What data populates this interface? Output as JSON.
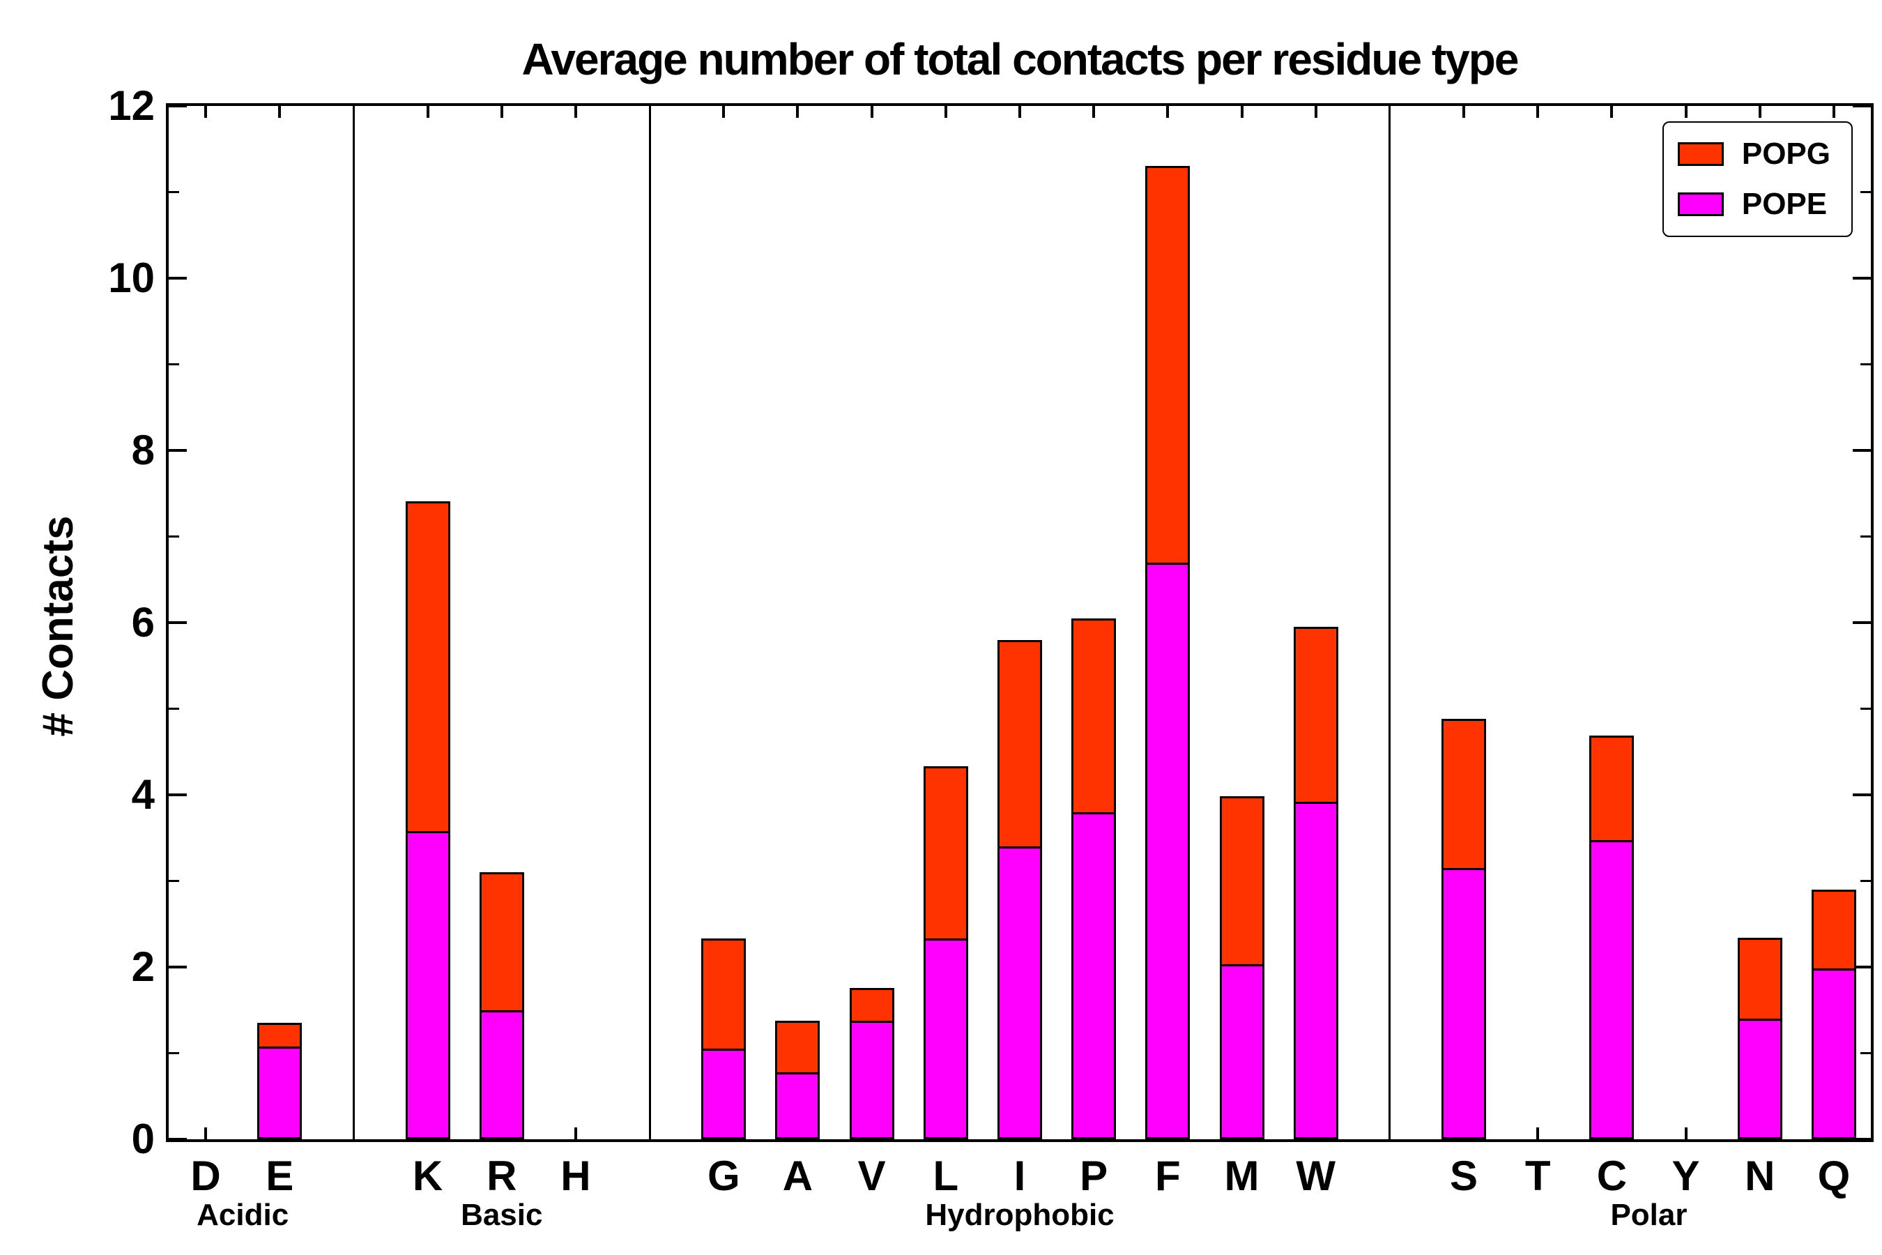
{
  "chart_data": {
    "type": "bar",
    "stacked": true,
    "title": "Average number of total contacts per residue type",
    "ylabel": "# Contacts",
    "xlabel": "",
    "ylim": [
      0,
      12
    ],
    "ytick_major_step": 2,
    "ytick_minor_step": 1,
    "grid": false,
    "legend_position": "upper right",
    "legend": [
      {
        "label": "POPG",
        "color": "#FF3300"
      },
      {
        "label": "POPE",
        "color": "#FF00FF"
      }
    ],
    "groups": [
      {
        "label": "Acidic",
        "categories": [
          "D",
          "E"
        ]
      },
      {
        "label": "Basic",
        "categories": [
          "K",
          "R",
          "H"
        ]
      },
      {
        "label": "Hydrophobic",
        "categories": [
          "G",
          "A",
          "V",
          "L",
          "I",
          "P",
          "F",
          "M",
          "W"
        ]
      },
      {
        "label": "Polar",
        "categories": [
          "S",
          "T",
          "C",
          "Y",
          "N",
          "Q"
        ]
      }
    ],
    "series": [
      {
        "name": "POPE",
        "color": "#FF00FF",
        "values": {
          "D": 0,
          "E": 1.08,
          "K": 3.58,
          "R": 1.5,
          "H": 0,
          "G": 1.05,
          "A": 0.78,
          "V": 1.38,
          "L": 2.33,
          "I": 3.4,
          "P": 3.8,
          "F": 6.7,
          "M": 2.03,
          "W": 3.92,
          "S": 3.15,
          "T": 0,
          "C": 3.47,
          "Y": 0,
          "N": 1.4,
          "Q": 1.98
        }
      },
      {
        "name": "POPG",
        "color": "#FF3300",
        "values": {
          "D": 0,
          "E": 0.27,
          "K": 3.83,
          "R": 1.6,
          "H": 0,
          "G": 1.28,
          "A": 0.6,
          "V": 0.38,
          "L": 2.0,
          "I": 2.4,
          "P": 2.25,
          "F": 4.6,
          "M": 1.95,
          "W": 2.03,
          "S": 1.73,
          "T": 0,
          "C": 1.22,
          "Y": 0,
          "N": 0.94,
          "Q": 0.92
        }
      }
    ],
    "totals": {
      "D": 0,
      "E": 1.35,
      "K": 7.41,
      "R": 3.1,
      "H": 0,
      "G": 2.33,
      "A": 1.38,
      "V": 1.76,
      "L": 4.33,
      "I": 5.8,
      "P": 6.05,
      "F": 11.3,
      "M": 3.98,
      "W": 5.95,
      "S": 4.88,
      "T": 0,
      "C": 4.69,
      "Y": 0,
      "N": 2.34,
      "Q": 2.9
    }
  }
}
